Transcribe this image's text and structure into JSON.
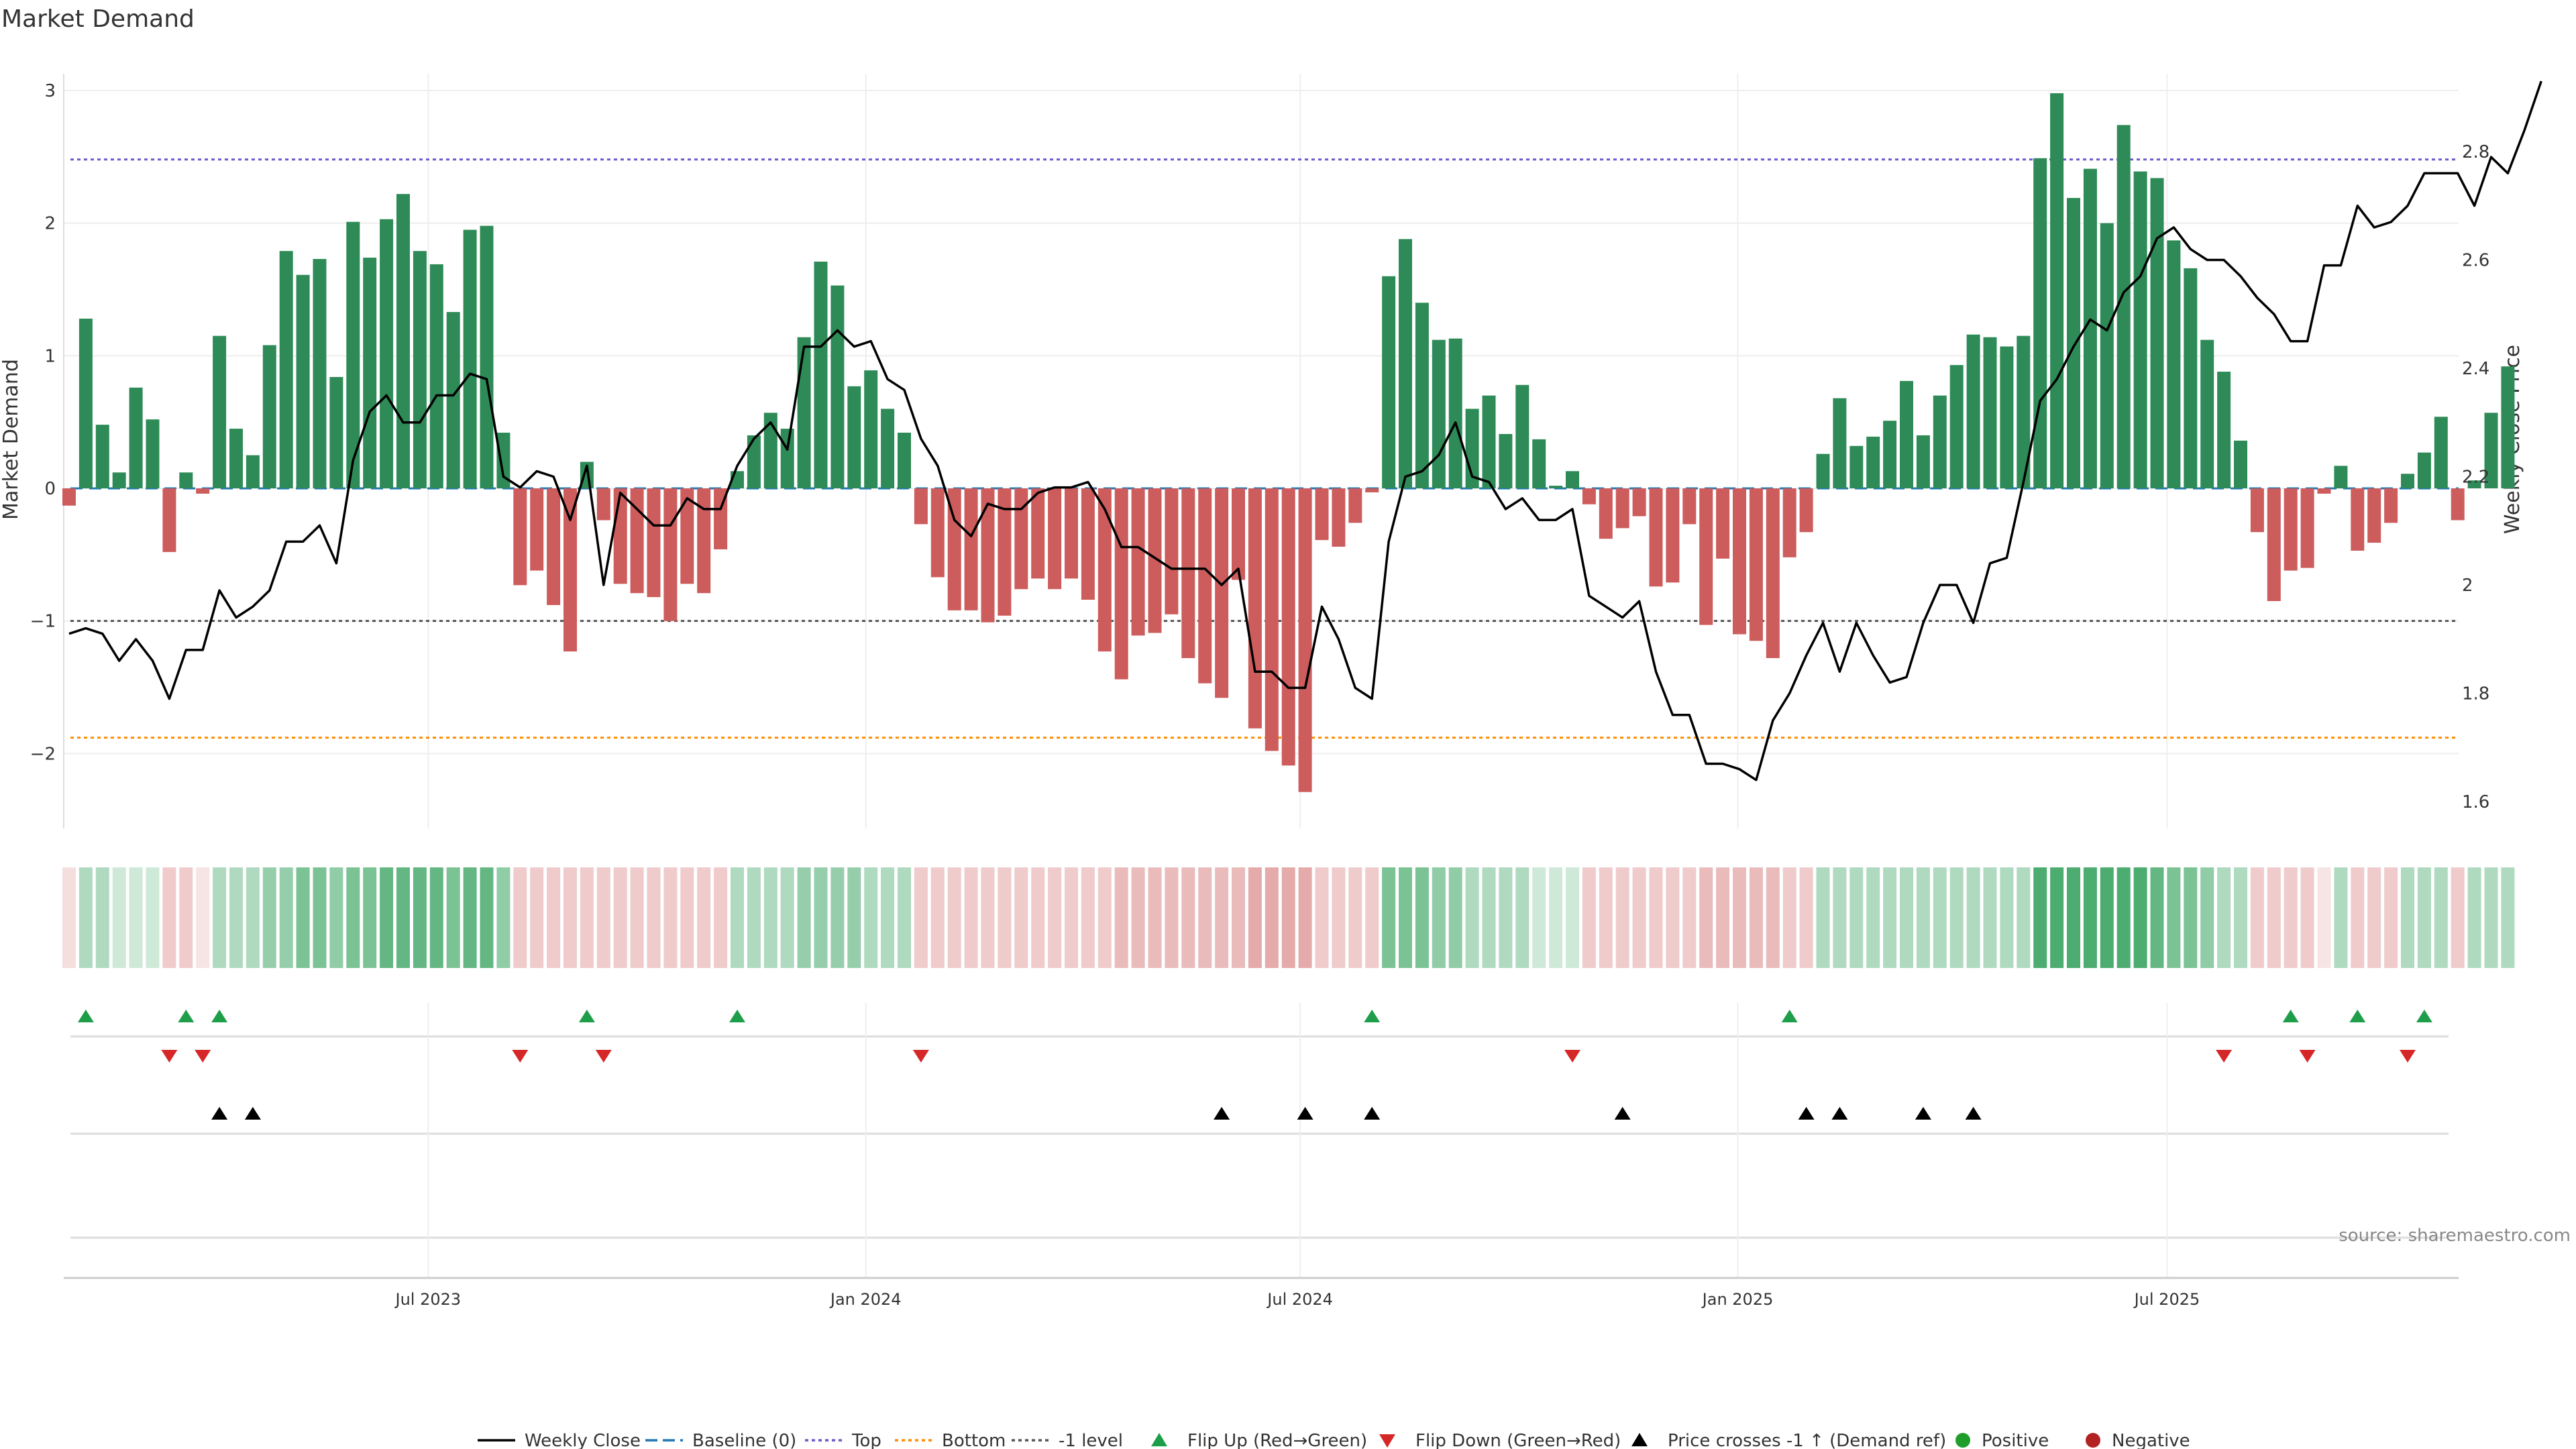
{
  "chart_data": {
    "type": "bar",
    "title": "Market Demand",
    "ylabel": "Market Demand",
    "y2label": "Weekly Close Price",
    "ylim": [
      -2.6,
      3.1
    ],
    "y2lim": [
      1.56,
      2.99
    ],
    "yticks": [
      "3",
      "2",
      "1",
      "0",
      "−1",
      "−2"
    ],
    "yticks_values": [
      3,
      2,
      1,
      0,
      -1,
      -2
    ],
    "y2ticks": [
      "2.8",
      "2.6",
      "2.4",
      "2.2",
      "2",
      "1.8",
      "1.6"
    ],
    "y2ticks_values": [
      2.8,
      2.6,
      2.4,
      2.2,
      2.0,
      1.8,
      1.6
    ],
    "xticks": [
      "Jul 2023",
      "Jan 2024",
      "Jul 2024",
      "Jan 2025",
      "Jul 2025"
    ],
    "xticks_week": [
      21.5,
      47.7,
      73.7,
      99.9,
      125.6
    ],
    "reference_lines": {
      "top": 2.48,
      "bottom": -1.88,
      "minus_one": -1.0,
      "baseline": 0
    },
    "colors": {
      "positive": "#2e8b57",
      "negative": "#cd5c5c",
      "price": "#000000",
      "top": "#6a5acd",
      "bottom": "#ff8c00",
      "minus_one": "#555555",
      "baseline": "#1f77b4",
      "flip_up": "#1f9e4a",
      "flip_down": "#d62728",
      "cross": "#000000"
    },
    "demand": [
      -0.13,
      1.28,
      0.48,
      0.12,
      0.76,
      0.52,
      -0.48,
      0.12,
      -0.04,
      1.15,
      0.45,
      0.25,
      1.08,
      1.79,
      1.61,
      1.73,
      0.84,
      2.01,
      1.74,
      2.03,
      2.22,
      1.79,
      1.69,
      1.33,
      1.95,
      1.98,
      0.42,
      -0.73,
      -0.62,
      -0.88,
      -1.23,
      0.2,
      -0.24,
      -0.72,
      -0.79,
      -0.82,
      -1.0,
      -0.72,
      -0.79,
      -0.46,
      0.13,
      0.4,
      0.57,
      0.45,
      1.14,
      1.71,
      1.53,
      0.77,
      0.89,
      0.6,
      0.42,
      -0.27,
      -0.67,
      -0.92,
      -0.92,
      -1.01,
      -0.96,
      -0.76,
      -0.68,
      -0.76,
      -0.68,
      -0.84,
      -1.23,
      -1.44,
      -1.11,
      -1.09,
      -0.95,
      -1.28,
      -1.47,
      -1.58,
      -0.69,
      -1.81,
      -1.98,
      -2.09,
      -2.29,
      -0.39,
      -0.44,
      -0.26,
      -0.03,
      1.6,
      1.88,
      1.4,
      1.12,
      1.13,
      0.6,
      0.7,
      0.41,
      0.78,
      0.37,
      0.02,
      0.13,
      -0.12,
      -0.38,
      -0.3,
      -0.21,
      -0.74,
      -0.71,
      -0.27,
      -1.03,
      -0.53,
      -1.1,
      -1.15,
      -1.28,
      -0.52,
      -0.33,
      0.26,
      0.68,
      0.32,
      0.39,
      0.51,
      0.81,
      0.4,
      0.7,
      0.93,
      1.16,
      1.14,
      1.07,
      1.15,
      2.49,
      2.98,
      2.19,
      2.41,
      2.0,
      2.74,
      2.39,
      2.34,
      1.87,
      1.66,
      1.12,
      0.88,
      0.36,
      -0.33,
      -0.85,
      -0.62,
      -0.6,
      -0.04,
      0.17,
      -0.47,
      -0.41,
      -0.26,
      0.11,
      0.27,
      0.54,
      -0.24,
      0.06,
      0.57,
      0.92
    ],
    "price": [
      1.91,
      1.92,
      1.91,
      1.86,
      1.9,
      1.86,
      1.79,
      1.88,
      1.88,
      1.99,
      1.94,
      1.96,
      1.99,
      2.08,
      2.08,
      2.11,
      2.04,
      2.23,
      2.32,
      2.35,
      2.3,
      2.3,
      2.35,
      2.35,
      2.39,
      2.38,
      2.2,
      2.18,
      2.21,
      2.2,
      2.12,
      2.22,
      2.0,
      2.17,
      2.14,
      2.11,
      2.11,
      2.16,
      2.14,
      2.14,
      2.22,
      2.27,
      2.3,
      2.25,
      2.44,
      2.44,
      2.47,
      2.44,
      2.45,
      2.38,
      2.36,
      2.27,
      2.22,
      2.12,
      2.09,
      2.15,
      2.14,
      2.14,
      2.17,
      2.18,
      2.18,
      2.19,
      2.14,
      2.07,
      2.07,
      2.05,
      2.03,
      2.03,
      2.03,
      2.0,
      2.03,
      1.84,
      1.84,
      1.81,
      1.81,
      1.96,
      1.9,
      1.81,
      1.79,
      2.08,
      2.2,
      2.21,
      2.24,
      2.3,
      2.2,
      2.19,
      2.14,
      2.16,
      2.12,
      2.12,
      2.14,
      1.98,
      1.96,
      1.94,
      1.97,
      1.84,
      1.76,
      1.76,
      1.67,
      1.67,
      1.66,
      1.64,
      1.75,
      1.8,
      1.87,
      1.93,
      1.84,
      1.93,
      1.87,
      1.82,
      1.83,
      1.93,
      2.0,
      2.0,
      1.93,
      2.04,
      2.05,
      2.19,
      2.34,
      2.38,
      2.44,
      2.49,
      2.47,
      2.54,
      2.57,
      2.64,
      2.66,
      2.62,
      2.6,
      2.6,
      2.57,
      2.53,
      2.5,
      2.45,
      2.45,
      2.59,
      2.59,
      2.7,
      2.66,
      2.67,
      2.7,
      2.76,
      2.76,
      2.76,
      2.7,
      2.79,
      2.76,
      2.84,
      2.93
    ],
    "heat_strip": [
      -0.13,
      0.48,
      0.48,
      0.12,
      0.12,
      0.12,
      -0.48,
      -0.48,
      -0.04,
      0.48,
      0.48,
      0.48,
      0.76,
      0.76,
      1.08,
      1.08,
      0.84,
      1.08,
      1.08,
      1.33,
      1.33,
      1.33,
      1.33,
      1.08,
      1.33,
      1.33,
      0.84,
      -0.48,
      -0.48,
      -0.48,
      -0.48,
      -0.48,
      -0.48,
      -0.48,
      -0.48,
      -0.48,
      -0.48,
      -0.48,
      -0.48,
      -0.48,
      0.48,
      0.48,
      0.48,
      0.48,
      0.76,
      0.76,
      0.76,
      0.76,
      0.48,
      0.48,
      0.48,
      -0.48,
      -0.48,
      -0.48,
      -0.48,
      -0.48,
      -0.48,
      -0.48,
      -0.48,
      -0.48,
      -0.48,
      -0.48,
      -0.48,
      -0.76,
      -0.76,
      -0.76,
      -0.76,
      -0.76,
      -0.76,
      -0.76,
      -0.76,
      -1.03,
      -1.03,
      -1.03,
      -1.03,
      -0.48,
      -0.48,
      -0.48,
      -0.48,
      1.08,
      1.08,
      1.08,
      0.84,
      0.84,
      0.48,
      0.48,
      0.48,
      0.48,
      0.12,
      0.12,
      0.12,
      -0.48,
      -0.48,
      -0.48,
      -0.48,
      -0.48,
      -0.48,
      -0.48,
      -0.76,
      -0.76,
      -0.76,
      -0.76,
      -0.76,
      -0.48,
      -0.48,
      0.48,
      0.48,
      0.48,
      0.48,
      0.48,
      0.48,
      0.48,
      0.48,
      0.48,
      0.48,
      0.48,
      0.48,
      0.48,
      1.6,
      1.6,
      1.6,
      1.6,
      1.6,
      1.6,
      1.6,
      1.33,
      1.08,
      1.08,
      0.84,
      0.48,
      0.48,
      -0.48,
      -0.48,
      -0.48,
      -0.48,
      -0.04,
      0.48,
      -0.48,
      -0.48,
      -0.48,
      0.48,
      0.48,
      0.48,
      -0.48,
      0.48,
      0.48,
      0.48
    ],
    "flip_up_weeks": [
      1,
      7,
      9,
      31,
      40,
      78,
      103,
      133,
      137,
      141
    ],
    "flip_down_weeks": [
      6,
      8,
      27,
      32,
      51,
      90,
      129,
      134,
      140
    ],
    "price_cross_weeks": [
      9,
      11,
      69,
      74,
      78,
      93,
      104,
      106,
      111,
      114
    ],
    "legend": [
      "Weekly Close",
      "Baseline (0)",
      "Top",
      "Bottom",
      "-1 level",
      "Flip Up (Red→Green)",
      "Flip Down (Green→Red)",
      "Price crosses -1 ↑ (Demand ref)",
      "Positive",
      "Negative"
    ]
  },
  "source": "source: sharemaestro.com"
}
